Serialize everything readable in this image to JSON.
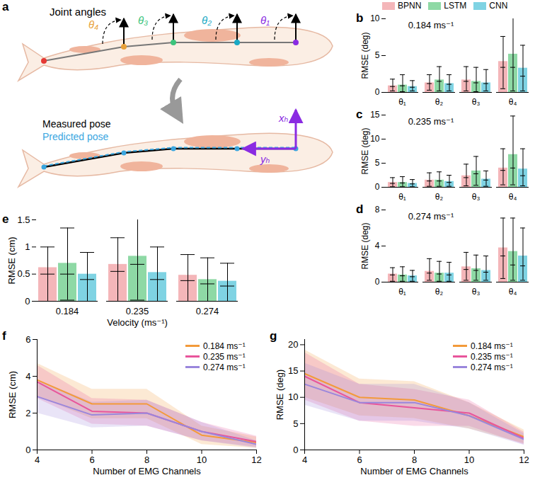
{
  "diagram": {
    "panel": "a",
    "title": "Joint angles",
    "angle_labels": [
      "θ₁",
      "θ₂",
      "θ₃",
      "θ₄"
    ],
    "pose_labels": [
      "Measured pose",
      "Predicted pose"
    ],
    "axis_labels": [
      "xₕ",
      "yₕ"
    ]
  },
  "chart_data": [
    {
      "panel": "b",
      "type": "bar",
      "annotation": "0.184 ms⁻¹",
      "y_label": "RMSE (deg)",
      "legend": "top",
      "categories": [
        "θ₁",
        "θ₂",
        "θ₃",
        "θ₄"
      ],
      "ylim": [
        0,
        10
      ],
      "yticks": [
        0,
        5,
        10
      ],
      "series": [
        {
          "name": "BPNN",
          "color": "#f4b6b9",
          "values": [
            0.9,
            1.3,
            1.7,
            4.2
          ],
          "center": [
            0.8,
            1.2,
            1.5,
            3.4
          ],
          "lower": [
            0.2,
            0.3,
            0.2,
            0.5
          ],
          "upper": [
            1.8,
            2.4,
            3.5,
            7.6
          ]
        },
        {
          "name": "LSTM",
          "color": "#8ed9a5",
          "values": [
            1.0,
            1.7,
            1.5,
            5.2
          ],
          "center": [
            0.9,
            1.5,
            1.3,
            3.4
          ],
          "lower": [
            0.1,
            0.2,
            0.1,
            0.2
          ],
          "upper": [
            2.4,
            3.5,
            3.4,
            10.2
          ]
        },
        {
          "name": "CNN",
          "color": "#7fd3e3",
          "values": [
            0.8,
            1.2,
            1.3,
            3.3
          ],
          "center": [
            0.7,
            1.1,
            1.2,
            2.2
          ],
          "lower": [
            0.2,
            0.2,
            0.2,
            0.2
          ],
          "upper": [
            1.6,
            2.4,
            3.1,
            6.4
          ]
        }
      ]
    },
    {
      "panel": "c",
      "type": "bar",
      "annotation": "0.235 ms⁻¹",
      "y_label": "RMSE (deg)",
      "categories": [
        "θ₁",
        "θ₂",
        "θ₃",
        "θ₄"
      ],
      "ylim": [
        0,
        15
      ],
      "yticks": [
        0,
        5,
        10,
        15
      ],
      "series": [
        {
          "name": "BPNN",
          "color": "#f4b6b9",
          "values": [
            1.0,
            1.5,
            2.4,
            4.0
          ],
          "center": [
            0.8,
            1.3,
            2.0,
            3.5
          ],
          "lower": [
            0.1,
            0.2,
            0.3,
            0.5
          ],
          "upper": [
            2.0,
            3.0,
            4.8,
            8.0
          ]
        },
        {
          "name": "LSTM",
          "color": "#8ed9a5",
          "values": [
            1.0,
            1.5,
            3.4,
            6.8
          ],
          "center": [
            0.9,
            1.3,
            2.8,
            4.0
          ],
          "lower": [
            0.1,
            0.2,
            0.4,
            0.5
          ],
          "upper": [
            2.2,
            3.2,
            6.4,
            14.8
          ]
        },
        {
          "name": "CNN",
          "color": "#7fd3e3",
          "values": [
            0.8,
            1.2,
            1.7,
            3.8
          ],
          "center": [
            0.7,
            1.0,
            1.5,
            2.4
          ],
          "lower": [
            0.1,
            0.2,
            0.2,
            0.3
          ],
          "upper": [
            1.6,
            2.5,
            3.4,
            8.0
          ]
        }
      ]
    },
    {
      "panel": "d",
      "type": "bar",
      "annotation": "0.274 ms⁻¹",
      "y_label": "RMSE (deg)",
      "categories": [
        "θ₁",
        "θ₂",
        "θ₃",
        "θ₄"
      ],
      "ylim": [
        0,
        8
      ],
      "yticks": [
        0,
        4,
        8
      ],
      "series": [
        {
          "name": "BPNN",
          "color": "#f4b6b9",
          "values": [
            0.9,
            1.2,
            1.7,
            3.8
          ],
          "center": [
            0.8,
            1.0,
            1.4,
            2.9
          ],
          "lower": [
            0.1,
            0.2,
            0.2,
            0.4
          ],
          "upper": [
            1.6,
            2.6,
            3.3,
            7.1
          ]
        },
        {
          "name": "LSTM",
          "color": "#8ed9a5",
          "values": [
            0.8,
            1.0,
            1.5,
            3.4
          ],
          "center": [
            0.7,
            0.9,
            1.3,
            1.9
          ],
          "lower": [
            0.1,
            0.1,
            0.2,
            0.2
          ],
          "upper": [
            1.7,
            2.3,
            3.0,
            7.1
          ]
        },
        {
          "name": "CNN",
          "color": "#7fd3e3",
          "values": [
            0.7,
            1.0,
            1.3,
            2.9
          ],
          "center": [
            0.6,
            0.8,
            1.1,
            1.8
          ],
          "lower": [
            0.1,
            0.1,
            0.2,
            0.2
          ],
          "upper": [
            1.3,
            2.2,
            2.9,
            6.0
          ]
        }
      ]
    },
    {
      "panel": "e",
      "type": "bar",
      "x_label": "Velocity (ms⁻¹)",
      "y_label": "RMSE (cm)",
      "categories": [
        "0.184",
        "0.235",
        "0.274"
      ],
      "ylim": [
        0,
        1.5
      ],
      "yticks": [
        0,
        0.5,
        1,
        1.5
      ],
      "series": [
        {
          "name": "BPNN",
          "color": "#f4b6b9",
          "values": [
            0.62,
            0.68,
            0.48
          ],
          "center": [
            0.5,
            0.55,
            0.38
          ],
          "lower": [
            0.0,
            0.0,
            0.0
          ],
          "upper": [
            1.0,
            1.17,
            0.86
          ]
        },
        {
          "name": "LSTM",
          "color": "#8ed9a5",
          "values": [
            0.7,
            0.83,
            0.4
          ],
          "center": [
            0.5,
            0.68,
            0.32
          ],
          "lower": [
            0.02,
            0.02,
            0.0
          ],
          "upper": [
            1.35,
            1.58,
            0.8
          ]
        },
        {
          "name": "CNN",
          "color": "#7fd3e3",
          "values": [
            0.5,
            0.53,
            0.37
          ],
          "center": [
            0.4,
            0.4,
            0.28
          ],
          "lower": [
            0.0,
            0.0,
            0.0
          ],
          "upper": [
            0.9,
            1.0,
            0.7
          ]
        }
      ]
    },
    {
      "panel": "f",
      "type": "line",
      "x_label": "Number of EMG Channels",
      "y_label": "RMSE (cm)",
      "legend": "top-right",
      "x": [
        4,
        6,
        8,
        10,
        12
      ],
      "xlim": [
        4,
        12
      ],
      "xticks": [
        4,
        6,
        8,
        10,
        12
      ],
      "ylim": [
        0,
        6
      ],
      "yticks": [
        0,
        2,
        4,
        6
      ],
      "series": [
        {
          "name": "0.184 ms⁻¹",
          "color": "#f39a3a",
          "values": [
            3.8,
            2.5,
            2.5,
            0.8,
            0.4
          ],
          "lower": [
            2.9,
            1.7,
            1.7,
            0.3,
            0.1
          ],
          "upper": [
            4.7,
            3.3,
            3.3,
            1.3,
            0.7
          ]
        },
        {
          "name": "0.235 ms⁻¹",
          "color": "#e8559b",
          "values": [
            3.7,
            2.1,
            2.0,
            1.0,
            0.45
          ],
          "lower": [
            2.8,
            1.4,
            1.3,
            0.5,
            0.15
          ],
          "upper": [
            4.6,
            2.8,
            2.7,
            1.5,
            0.75
          ]
        },
        {
          "name": "0.274 ms⁻¹",
          "color": "#9a86dc",
          "values": [
            2.9,
            1.9,
            2.0,
            1.0,
            0.3
          ],
          "lower": [
            2.0,
            1.2,
            1.3,
            0.5,
            0.1
          ],
          "upper": [
            3.8,
            2.6,
            2.7,
            1.5,
            0.5
          ]
        }
      ]
    },
    {
      "panel": "g",
      "type": "line",
      "x_label": "Number of EMG Channels",
      "y_label": "RMSE (deg)",
      "legend": "top-right",
      "x": [
        4,
        6,
        8,
        10,
        12
      ],
      "xlim": [
        4,
        12
      ],
      "xticks": [
        4,
        6,
        8,
        10,
        12
      ],
      "ylim": [
        0,
        21
      ],
      "yticks": [
        0,
        5,
        10,
        15,
        20
      ],
      "series": [
        {
          "name": "0.184 ms⁻¹",
          "color": "#f39a3a",
          "values": [
            14.5,
            10,
            9.5,
            6.5,
            2.5
          ],
          "lower": [
            10,
            6.5,
            6,
            4,
            1.2
          ],
          "upper": [
            19,
            13.5,
            13,
            9,
            3.8
          ]
        },
        {
          "name": "0.235 ms⁻¹",
          "color": "#e8559b",
          "values": [
            14,
            9,
            8,
            7,
            2.2
          ],
          "lower": [
            9.5,
            5.5,
            4.5,
            4.5,
            1
          ],
          "upper": [
            18.5,
            12.5,
            11.5,
            9.5,
            3.4
          ]
        },
        {
          "name": "0.274 ms⁻¹",
          "color": "#9a86dc",
          "values": [
            12.5,
            9,
            9,
            6.5,
            2
          ],
          "lower": [
            8.5,
            5.5,
            5.5,
            4,
            0.9
          ],
          "upper": [
            16.5,
            12.5,
            12.5,
            9,
            3.1
          ]
        }
      ]
    }
  ]
}
